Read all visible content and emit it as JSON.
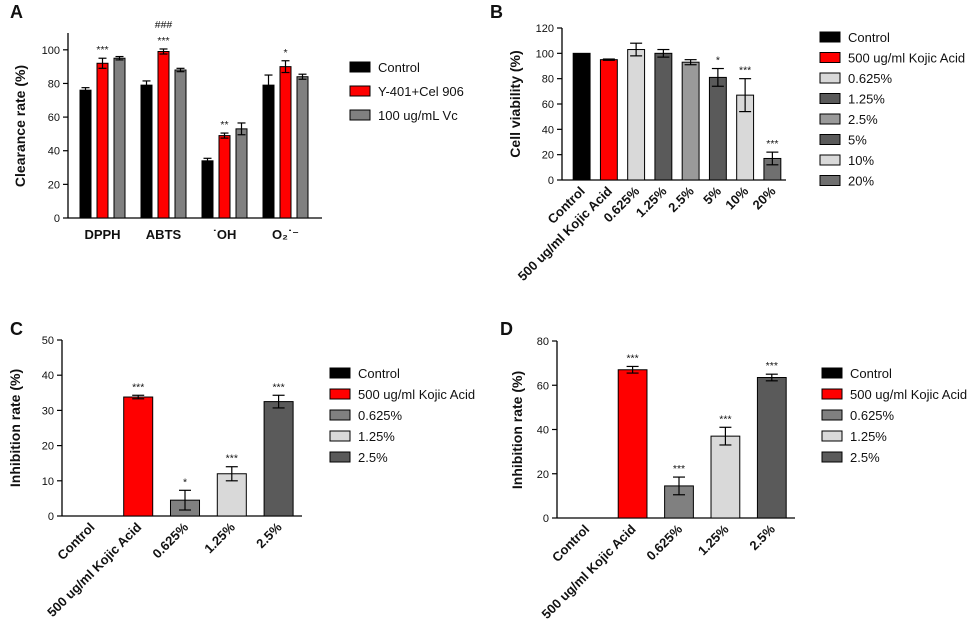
{
  "colors": {
    "black": "#000000",
    "red": "#ff0000",
    "gray": "#808080",
    "lightgray": "#d9d9d9",
    "midgray": "#9a9a9a",
    "darkgray": "#5a5a5a",
    "gray2": "#707070"
  },
  "chart_data": [
    {
      "panel_label": "A",
      "type": "bar",
      "ylabel": "Clearance rate (%)",
      "ylim": [
        0,
        110
      ],
      "yticks": [
        "0",
        "20",
        "40",
        "60",
        "80",
        "100"
      ],
      "groups": [
        "DPPH",
        "ABTS",
        "˙OH",
        "O₂˙⁻"
      ],
      "series": [
        {
          "name": "Control",
          "color": "#000000",
          "values": [
            76,
            79,
            34,
            79
          ],
          "errors": [
            1.5,
            2.5,
            1.5,
            6
          ]
        },
        {
          "name": "Y-401+Cel 906",
          "color": "#ff0000",
          "values": [
            92,
            99,
            49,
            90
          ],
          "errors": [
            3,
            1.5,
            1.5,
            3.5
          ]
        },
        {
          "name": "100 ug/mL Vc",
          "color": "#808080",
          "values": [
            95,
            88,
            53,
            84
          ],
          "errors": [
            1,
            1,
            3.5,
            1.5
          ]
        }
      ],
      "annotations": [
        {
          "group": 0,
          "series": 1,
          "text": "***"
        },
        {
          "group": 1,
          "series": 1,
          "text": "***"
        },
        {
          "group": 1,
          "series": 1,
          "text": "###"
        },
        {
          "group": 2,
          "series": 1,
          "text": "**"
        },
        {
          "group": 3,
          "series": 1,
          "text": "*"
        }
      ]
    },
    {
      "panel_label": "B",
      "type": "bar",
      "ylabel": "Cell viability (%)",
      "ylim": [
        0,
        120
      ],
      "yticks": [
        "0",
        "20",
        "40",
        "60",
        "80",
        "100",
        "120"
      ],
      "categories": [
        "Control",
        "500 ug/ml Kojic Acid",
        "0.625%",
        "1.25%",
        "2.5%",
        "5%",
        "10%",
        "20%"
      ],
      "values": [
        100,
        95,
        103,
        100,
        93,
        81,
        67,
        17
      ],
      "errors": [
        0,
        0.5,
        5,
        3,
        2,
        7,
        13,
        5
      ],
      "colors": [
        "#000000",
        "#ff0000",
        "#d9d9d9",
        "#5a5a5a",
        "#9a9a9a",
        "#5a5a5a",
        "#d9d9d9",
        "#707070"
      ],
      "sig": [
        "",
        "",
        "",
        "",
        "",
        "*",
        "***",
        "***"
      ],
      "legend": [
        "Control",
        "500 ug/ml Kojic Acid",
        "0.625%",
        "1.25%",
        "2.5%",
        "5%",
        "10%",
        "20%"
      ]
    },
    {
      "panel_label": "C",
      "type": "bar",
      "ylabel": "Inhibition rate (%)",
      "ylim": [
        0,
        50
      ],
      "yticks": [
        "0",
        "10",
        "20",
        "30",
        "40",
        "50"
      ],
      "categories": [
        "Control",
        "500 ug/ml Kojic Acid",
        "0.625%",
        "1.25%",
        "2.5%"
      ],
      "values": [
        0,
        33.8,
        4.5,
        12,
        32.5
      ],
      "errors": [
        0,
        0.5,
        2.8,
        2,
        1.8
      ],
      "colors": [
        "#000000",
        "#ff0000",
        "#808080",
        "#d9d9d9",
        "#5a5a5a"
      ],
      "sig": [
        "",
        "***",
        "*",
        "***",
        "***"
      ],
      "legend": [
        "Control",
        "500 ug/ml Kojic Acid",
        "0.625%",
        "1.25%",
        "2.5%"
      ]
    },
    {
      "panel_label": "D",
      "type": "bar",
      "ylabel": "Inhibition rate (%)",
      "ylim": [
        0,
        80
      ],
      "yticks": [
        "0",
        "20",
        "40",
        "60",
        "80"
      ],
      "categories": [
        "Control",
        "500 ug/ml Kojic Acid",
        "0.625%",
        "1.25%",
        "2.5%"
      ],
      "values": [
        0,
        67,
        14.5,
        37,
        63.5
      ],
      "errors": [
        0,
        1.5,
        4,
        4,
        1.5
      ],
      "colors": [
        "#000000",
        "#ff0000",
        "#808080",
        "#d9d9d9",
        "#5a5a5a"
      ],
      "sig": [
        "",
        "***",
        "***",
        "***",
        "***"
      ],
      "legend": [
        "Control",
        "500 ug/ml Kojic Acid",
        "0.625%",
        "1.25%",
        "2.5%"
      ]
    }
  ]
}
